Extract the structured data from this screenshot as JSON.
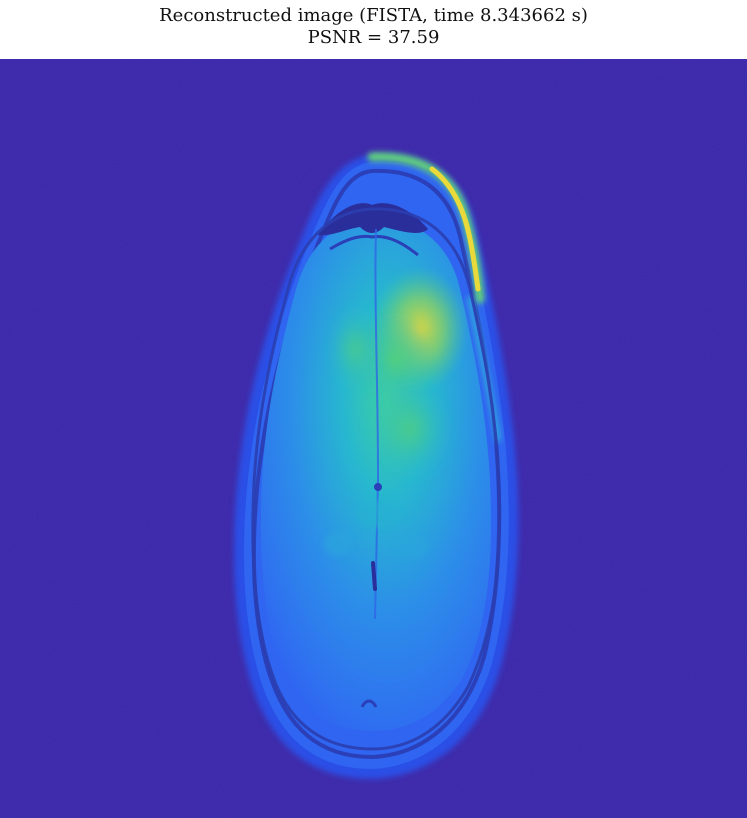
{
  "figure": {
    "title_line1": "Reconstructed image (FISTA, time 8.343662 s)",
    "title_line2": "PSNR = 37.59"
  },
  "colors": {
    "background_low": "#3a26a8",
    "low_blue": "#2d5ef5",
    "mid_blue": "#2c8fe8",
    "cyan": "#22b8c8",
    "green": "#4fcf7a",
    "yellow": "#d6cf2e",
    "bright_yellow": "#f5e83a"
  },
  "image": {
    "subject": "axial brain MRI slice",
    "colormap": "parula"
  }
}
